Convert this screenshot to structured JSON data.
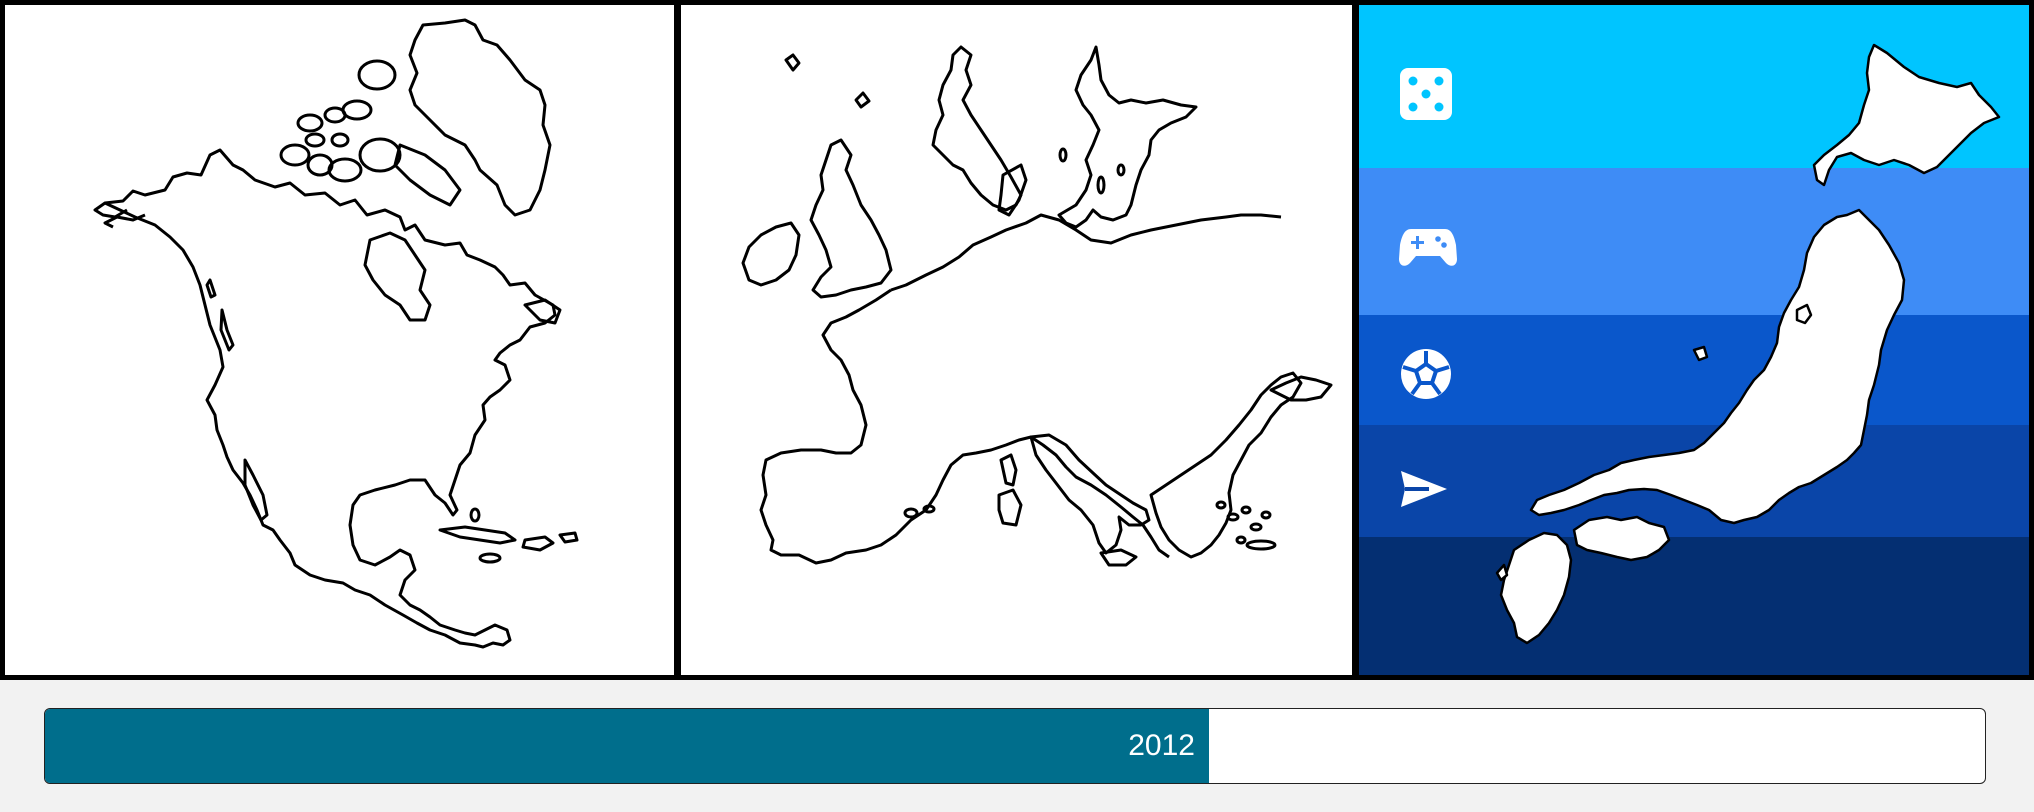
{
  "maps": [
    {
      "id": "north-america",
      "selected": false
    },
    {
      "id": "europe",
      "selected": false
    },
    {
      "id": "japan",
      "selected": true
    }
  ],
  "categories": [
    {
      "icon": "dice-icon",
      "color": "#00c5ff"
    },
    {
      "icon": "gamepad-icon",
      "color": "#3e8cf6"
    },
    {
      "icon": "soccer-ball-icon",
      "color": "#0a57cb"
    },
    {
      "icon": "send-icon",
      "color": "#0a45a8"
    },
    {
      "icon": "",
      "color": "#042f72"
    }
  ],
  "timeline": {
    "year_label": "2012",
    "progress": 0.6,
    "fill_color": "#006e8c"
  },
  "colors": {
    "border": "#000000",
    "map_fill": "#ffffff",
    "map_stroke": "#000000"
  }
}
